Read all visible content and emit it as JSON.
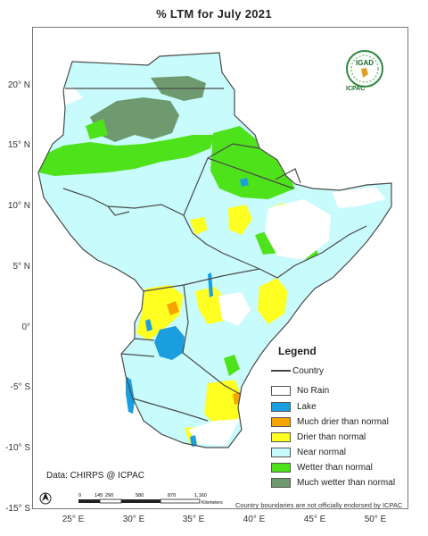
{
  "title": "% LTM  for   July 2021",
  "latitude_labels": [
    "20° N",
    "15° N",
    "10° N",
    "5° N",
    "0°",
    "-5° S",
    "-10° S",
    "-15° S"
  ],
  "longitude_labels": [
    "25° E",
    "30° E",
    "35° E",
    "40° E",
    "45° E",
    "50° E"
  ],
  "legend": {
    "title": "Legend",
    "country_label": "Country",
    "items": [
      {
        "label": "No Rain",
        "color": "#ffffff"
      },
      {
        "label": "Lake",
        "color": "#1a9ee0"
      },
      {
        "label": "Much drier than normal",
        "color": "#f5a400"
      },
      {
        "label": "Drier than normal",
        "color": "#ffff22"
      },
      {
        "label": "Near normal",
        "color": "#c8fbfb"
      },
      {
        "label": "Wetter than normal",
        "color": "#4ee21a"
      },
      {
        "label": "Much wetter than normal",
        "color": "#6f9a6f"
      }
    ]
  },
  "data_source": "Data: CHIRPS @ ICPAC",
  "disclaimer": "Country boundaries are not officially endorsed by ICPAC",
  "scale_bar": {
    "ticks": [
      "0",
      "145",
      "290",
      "580",
      "870",
      "1,160"
    ],
    "unit": "Kilometers"
  },
  "logo": {
    "top_text": "IGAD",
    "caption": "ICPAC"
  },
  "north_arrow_icon": "north-arrow-icon"
}
